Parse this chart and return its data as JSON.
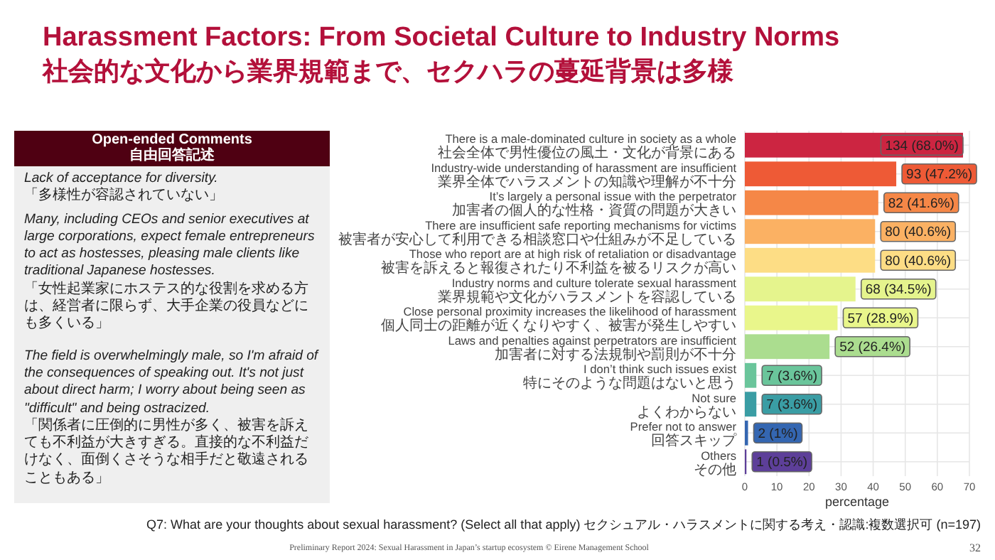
{
  "chart_data": [
    {
      "type": "other",
      "title": "Open-ended Comments",
      "subtitle": "自由回答記述",
      "annotations": [
        "Lack of acceptance for diversity.",
        "「多様性が容認されていない」",
        "Many, including CEOs and senior executives at large corporations, expect female entrepreneurs to act as hostesses, pleasing male clients like traditional Japanese hostesses.",
        "「女性起業家にホステス的な役割を求める方は、経営者に限らず、大手企業の役員などにも多くいる」",
        "The field is overwhelmingly male, so I'm afraid of the consequences of speaking out. It's not just about direct harm; I worry about being seen as \"difficult\" and being ostracized.",
        "「関係者に圧倒的に男性が多く、被害を訴えても不利益が大きすぎる。直接的な不利益だけなく、面倒くさそうな相手だと敬遠されることもある」"
      ]
    },
    {
      "type": "bar",
      "orientation": "horizontal",
      "title": "Harassment Factors: From Societal Culture to Industry Norms",
      "subtitle": "社会的な文化から業界規範まで、セクハラの蔓延背景は多様",
      "categories": [
        "There is a male-dominated culture in society as a whole\n社会全体で男性優位の風土・文化が背景にある",
        "Industry-wide understanding of harassment are insufficient\n業界全体でハラスメントの知識や理解が不十分",
        "It’s largely a personal issue with the perpetrator\n加害者の個人的な性格・資質の問題が大きい",
        "There are insufficient safe reporting mechanisms for victims\n被害者が安心して利用できる相談窓口や仕組みが不足している",
        "Those who report are at high risk of retaliation or disadvantage\n被害を訴えると報復されたり不利益を被るリスクが高い",
        "Industry norms and culture tolerate sexual harassment\n業界規範や文化がハラスメントを容認している",
        "Close personal proximity increases the likelihood of harassment\n個人同士の距離が近くなりやすく、被害が発生しやすい",
        "Laws and penalties against perpetrators are insufficient\n加害者に対する法規制や罰則が不十分",
        "I don’t think such issues exist\n特にそのような問題はないと思う",
        "Not sure\nよくわからない",
        "Prefer not to answer\n回答スキップ",
        "Others\nその他"
      ],
      "values": [
        68.0,
        47.2,
        41.6,
        40.6,
        40.6,
        34.5,
        28.9,
        26.4,
        3.6,
        3.6,
        1,
        0.5
      ],
      "value_labels": [
        "134 (68.0%)",
        "93 (47.2%)",
        "82 (41.6%)",
        "80 (40.6%)",
        "80 (40.6%)",
        "68 (34.5%)",
        "57 (28.9%)",
        "52 (26.4%)",
        "7 (3.6%)",
        "7 (3.6%)",
        "2 (1%)",
        "1 (0.5%)"
      ],
      "colors": [
        "#cc2541",
        "#ee5a36",
        "#f58747",
        "#fbb163",
        "#fddd85",
        "#e5f48d",
        "#e9f68b",
        "#abdd8f",
        "#6ac59b",
        "#3a9da4",
        "#3466b1",
        "#5d3f99"
      ],
      "xlabel": "percentage",
      "xlim": [
        0,
        70
      ],
      "xticks": [
        0,
        10,
        20,
        30,
        40,
        50,
        60,
        70
      ],
      "grid": true,
      "annotations": [
        "Q7: What are your thoughts about sexual harassment? (Select all that apply) セクシュアル・ハラスメントに関する考え・認識:複数選択可 (n=197)",
        "Preliminary Report 2024: Sexual Harassment in Japan’s startup ecosystem © Eirene Management School",
        "32"
      ]
    }
  ]
}
